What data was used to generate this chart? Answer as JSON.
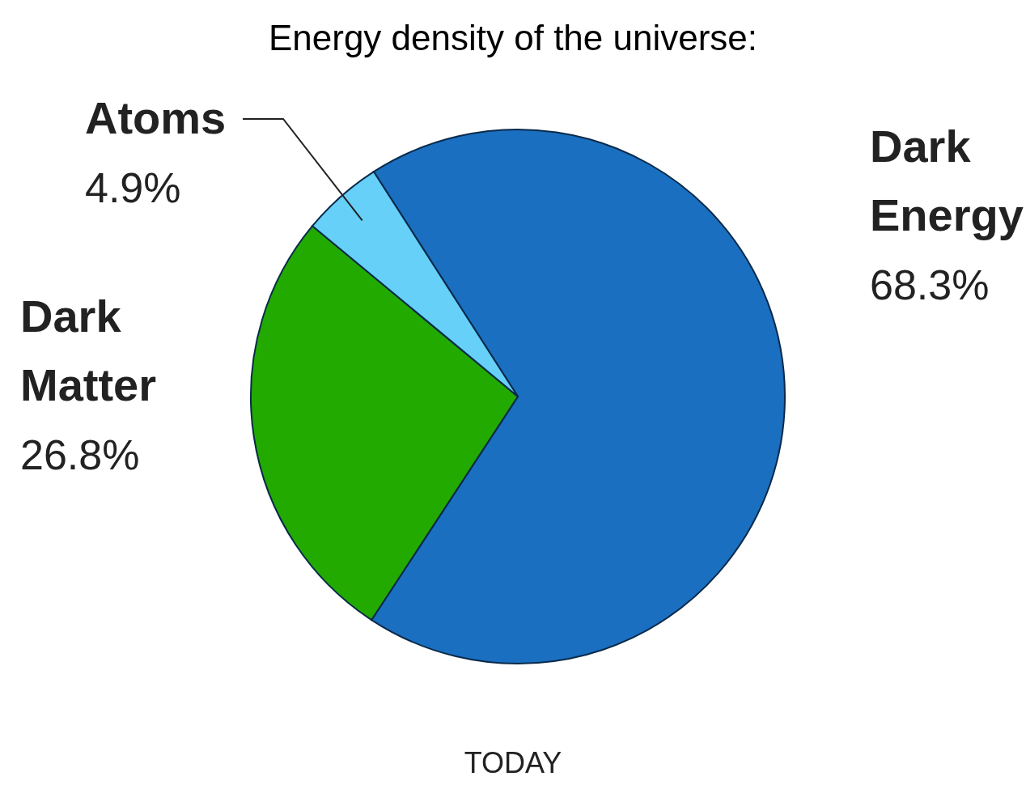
{
  "chart_data": {
    "type": "pie",
    "title": "Energy density of the universe:",
    "categories": [
      "Dark Energy",
      "Dark Matter",
      "Atoms"
    ],
    "values": [
      68.3,
      26.8,
      4.9
    ],
    "value_labels": [
      "68.3%",
      "26.8%",
      "4.9%"
    ],
    "colors": [
      "#1a6fc0",
      "#22aa00",
      "#66d0f8"
    ],
    "annotations": [
      "TODAY"
    ]
  }
}
